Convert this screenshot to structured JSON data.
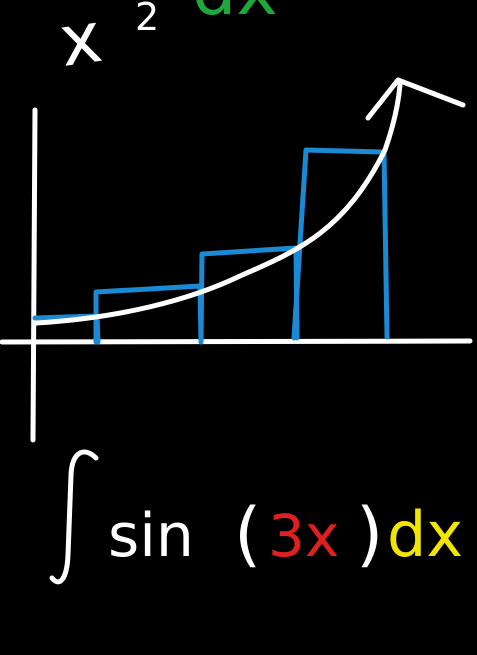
{
  "top_expression": {
    "base": "x",
    "exponent": "2",
    "differential": "dx"
  },
  "integral_expression": {
    "symbol": "∫",
    "function": "sin",
    "open_paren": "(",
    "argument": "3x",
    "close_paren": ")",
    "differential": "dx"
  },
  "colors": {
    "background": "#000000",
    "chalk_white": "#ffffff",
    "rectangles": "#1a8ad4",
    "differential_top": "#1fa83a",
    "argument": "#e02020",
    "differential_bottom": "#f2e600"
  }
}
